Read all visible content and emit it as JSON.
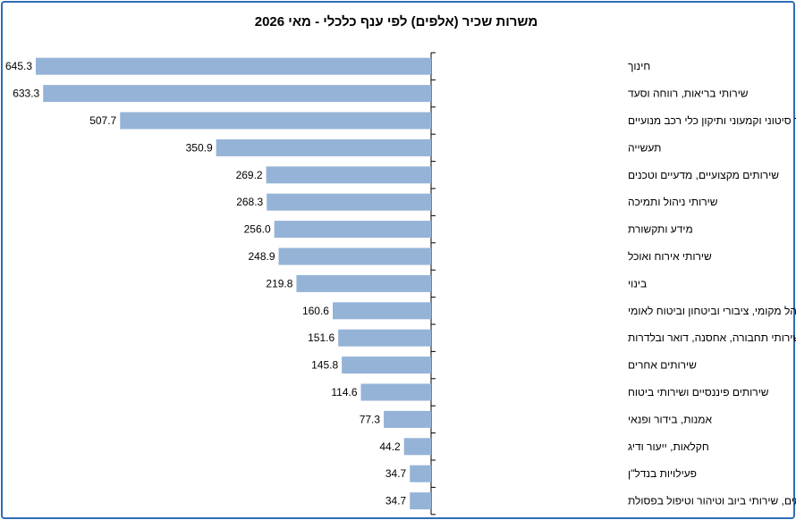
{
  "chart_data": {
    "type": "bar",
    "orientation": "horizontal",
    "title": "משרות שכיר (אלפים) לפי ענף כלכלי - מאי 2026",
    "categories": [
      "חינוך",
      "שירותי בריאות, רווחה וסעד",
      "מסחר סיטוני וקמעוני ותיקון כלי רכב מנועיים",
      "תעשייה",
      "שירותים מקצועיים, מדעיים וטכנים",
      "שירותי ניהול ותמיכה",
      "מידע ותקשורת",
      "שירותי אירוח ואוכל",
      "בינוי",
      "מינהל מקומי, ציבורי וביטחון וביטוח לאומי",
      "שירותי תחבורה, אחסנה, דואר ובלדרות",
      "שירותים אחרים",
      "שירותים פיננסיים ושירותי ביטוח",
      "אמנות, בידור ופנאי",
      "חקלאות, ייעור ודיג",
      "פעילויות בנדל\"ן",
      "אספקת חשמל ומים, שירותי ביוב וטיהור וטיפול בפסולת"
    ],
    "values": [
      645.3,
      633.3,
      507.7,
      350.9,
      269.2,
      268.3,
      256.0,
      248.9,
      219.8,
      160.6,
      151.6,
      145.8,
      114.6,
      77.3,
      44.2,
      34.7,
      34.7
    ],
    "value_labels": [
      "645.3",
      "633.3",
      "507.7",
      "350.9",
      "269.2",
      "268.3",
      "256.0",
      "248.9",
      "219.8",
      "160.6",
      "151.6",
      "145.8",
      "114.6",
      "77.3",
      "44.2",
      "34.7",
      "34.7"
    ],
    "bar_color": "#95b3d7",
    "axis_direction": "right-to-left",
    "legend": "none",
    "grid": false
  },
  "colors": {
    "frame": "#2e6db4",
    "bar": "#95b3d7",
    "axis": "#000000"
  }
}
